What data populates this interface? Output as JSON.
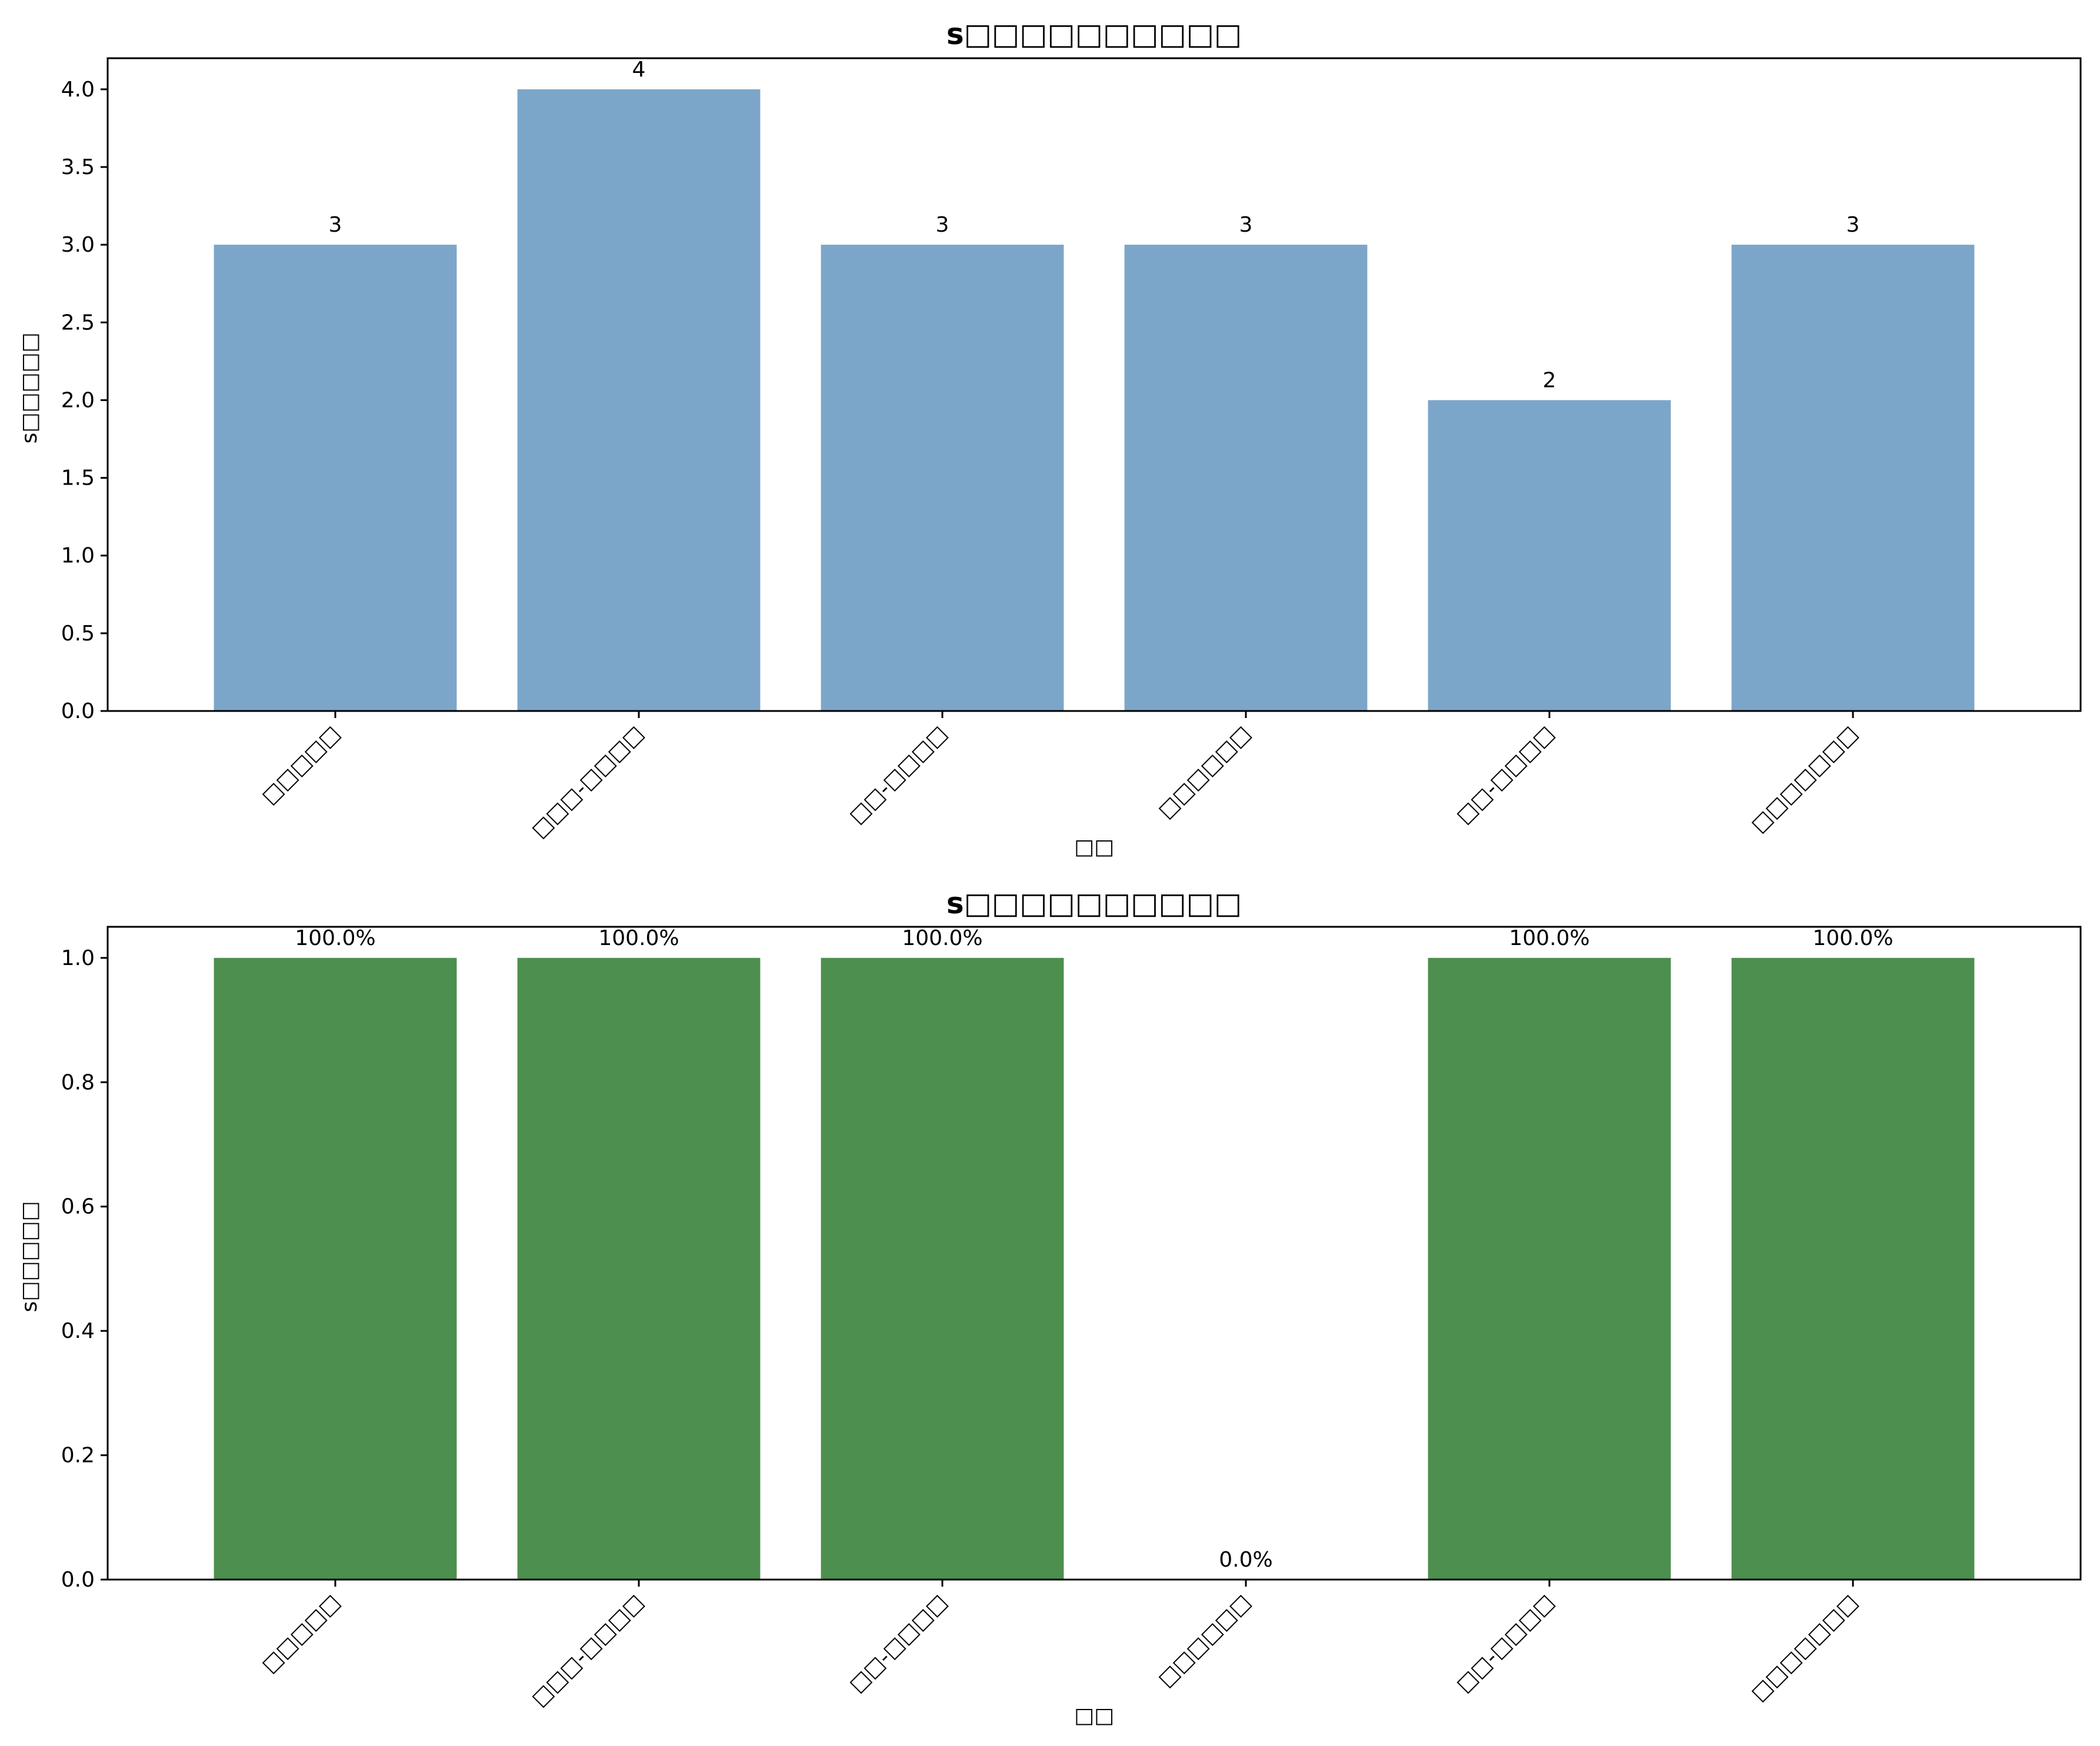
{
  "colors": {
    "top_bars": "#7ca6c9",
    "bottom_bars": "#4c8f4e",
    "axes": "#000000"
  },
  "chart_data": [
    {
      "type": "bar",
      "title": "s□□□□□□□□□□",
      "xlabel": "□□",
      "ylabel": "s□□□□□",
      "categories": [
        "□□□□□",
        "□□□-□□□□",
        "□□-□□□□",
        "□□□□□□",
        "□□-□□□□",
        "□□□□□□□"
      ],
      "values": [
        3,
        4,
        3,
        3,
        2,
        3
      ],
      "value_labels": [
        "3",
        "4",
        "3",
        "3",
        "2",
        "3"
      ],
      "ylim": [
        0,
        4.2
      ],
      "yticks": [
        "0.0",
        "0.5",
        "1.0",
        "1.5",
        "2.0",
        "2.5",
        "3.0",
        "3.5",
        "4.0"
      ],
      "ytick_values": [
        0,
        0.5,
        1,
        1.5,
        2,
        2.5,
        3,
        3.5,
        4
      ],
      "grid": false
    },
    {
      "type": "bar",
      "title": "s□□□□□□□□□□",
      "xlabel": "□□",
      "ylabel": "s□□□□□",
      "categories": [
        "□□□□□",
        "□□□-□□□□",
        "□□-□□□□",
        "□□□□□□",
        "□□-□□□□",
        "□□□□□□□"
      ],
      "values": [
        1.0,
        1.0,
        1.0,
        0.0,
        1.0,
        1.0
      ],
      "value_labels": [
        "100.0%",
        "100.0%",
        "100.0%",
        "0.0%",
        "100.0%",
        "100.0%"
      ],
      "ylim": [
        0,
        1.05
      ],
      "yticks": [
        "0.0",
        "0.2",
        "0.4",
        "0.6",
        "0.8",
        "1.0"
      ],
      "ytick_values": [
        0,
        0.2,
        0.4,
        0.6,
        0.8,
        1.0
      ],
      "grid": false
    }
  ]
}
